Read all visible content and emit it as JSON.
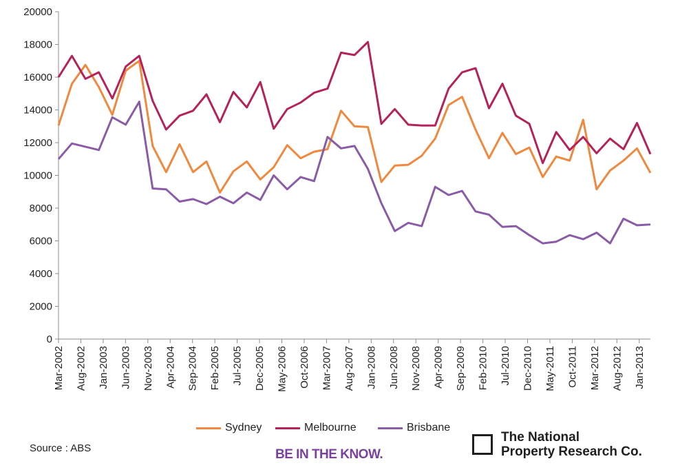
{
  "chart_data": {
    "type": "line",
    "title": "",
    "xlabel": "",
    "ylabel": "",
    "ylim": [
      0,
      20000
    ],
    "yticks": [
      0,
      2000,
      4000,
      6000,
      8000,
      10000,
      12000,
      14000,
      16000,
      18000,
      20000
    ],
    "grid": false,
    "legend_position": "bottom",
    "x_tick_labels": [
      "Mar-2002",
      "Aug-2002",
      "Jan-2003",
      "Jun-2003",
      "Nov-2003",
      "Apr-2004",
      "Sep-2004",
      "Feb-2005",
      "Jul-2005",
      "Dec-2005",
      "May-2006",
      "Oct-2006",
      "Mar-2007",
      "Aug-2007",
      "Jan-2008",
      "Jun-2008",
      "Nov-2008",
      "Apr-2009",
      "Sep-2009",
      "Feb-2010",
      "Jul-2010",
      "Dec-2010",
      "May-2011",
      "Oct-2011",
      "Mar-2012",
      "Aug-2012",
      "Jan-2013"
    ],
    "series": [
      {
        "name": "Sydney",
        "color": "#f0883e",
        "values": [
          13050,
          15600,
          16750,
          15400,
          13700,
          16400,
          17000,
          11800,
          10200,
          11900,
          10200,
          10850,
          8950,
          10250,
          10850,
          9750,
          10500,
          11850,
          11050,
          11450,
          11600,
          13950,
          13000,
          12950,
          9600,
          10600,
          10650,
          11200,
          12250,
          14300,
          14800,
          12800,
          11050,
          12600,
          11300,
          11700,
          9900,
          11150,
          10900,
          13400,
          9150,
          10300,
          10900,
          11650,
          10150
        ]
      },
      {
        "name": "Melbourne",
        "color": "#b5225a",
        "values": [
          16000,
          17300,
          15900,
          16300,
          14700,
          16650,
          17300,
          14550,
          12800,
          13650,
          13950,
          14950,
          13250,
          15100,
          14150,
          15700,
          12850,
          14050,
          14450,
          15050,
          15300,
          17500,
          17350,
          18150,
          13150,
          14050,
          13100,
          13050,
          13050,
          15300,
          16300,
          16550,
          14100,
          15600,
          13650,
          13150,
          10750,
          12650,
          11550,
          12350,
          11350,
          12250,
          11600,
          13200,
          11300
        ]
      },
      {
        "name": "Brisbane",
        "color": "#8a5ba6",
        "values": [
          11000,
          11950,
          11750,
          11550,
          13550,
          13100,
          14500,
          9200,
          9150,
          8400,
          8550,
          8250,
          8700,
          8300,
          8950,
          8500,
          10000,
          9150,
          9900,
          9650,
          12350,
          11650,
          11800,
          10400,
          8300,
          6600,
          7100,
          6900,
          9300,
          8800,
          9050,
          7800,
          7600,
          6850,
          6900,
          6350,
          5850,
          5950,
          6350,
          6100,
          6500,
          5850,
          7350,
          6950,
          7000
        ]
      }
    ]
  },
  "footer": {
    "source": "Source : ABS",
    "tagline": "BE IN THE KNOW.",
    "logo_line1": "The National",
    "logo_line2": "Property Research Co.",
    "tagline_color": "#7b3fa0"
  }
}
